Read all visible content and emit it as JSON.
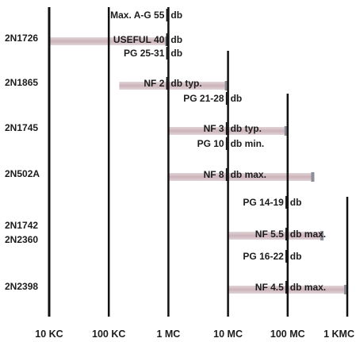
{
  "chart_data": {
    "type": "bar",
    "title": "",
    "xlabel": "",
    "ylabel": "",
    "x_scale": "log",
    "x_unit": "Hz",
    "xlim": [
      10000,
      1000000000
    ],
    "x_ticks": [
      {
        "label": "10 KC",
        "value": 10000
      },
      {
        "label": "100 KC",
        "value": 100000
      },
      {
        "label": "1 MC",
        "value": 1000000
      },
      {
        "label": "10 MC",
        "value": 10000000
      },
      {
        "label": "100 MC",
        "value": 100000000
      },
      {
        "label": "1 KMC",
        "value": 1000000000
      }
    ],
    "series": [
      {
        "name": "2N1726",
        "labels": [
          "2N1726"
        ],
        "range": [
          10000,
          1000000
        ],
        "specs": [
          {
            "param": "Max. A-G",
            "value": "55",
            "unit": "db"
          },
          {
            "param": "USEFUL",
            "value": "40",
            "unit": "db"
          }
        ]
      },
      {
        "name": "2N1865",
        "labels": [
          "2N1865"
        ],
        "range": [
          150000,
          10000000
        ],
        "specs": [
          {
            "param": "PG",
            "value": "25-31",
            "unit": "db"
          },
          {
            "param": "NF",
            "value": "2",
            "unit": "db typ."
          }
        ]
      },
      {
        "name": "2N1745",
        "labels": [
          "2N1745"
        ],
        "range": [
          1000000,
          100000000
        ],
        "specs": [
          {
            "param": "PG",
            "value": "21-28",
            "unit": "db"
          },
          {
            "param": "NF",
            "value": "3",
            "unit": "db typ."
          }
        ]
      },
      {
        "name": "2N502A",
        "labels": [
          "2N502A"
        ],
        "range": [
          1000000,
          280000000
        ],
        "specs": [
          {
            "param": "PG",
            "value": "10",
            "unit": "db min."
          },
          {
            "param": "NF",
            "value": "8",
            "unit": "db max."
          }
        ]
      },
      {
        "name": "2N1742 / 2N2360",
        "labels": [
          "2N1742",
          "2N2360"
        ],
        "range": [
          10000000,
          400000000
        ],
        "specs": [
          {
            "param": "PG",
            "value": "14-19",
            "unit": "db"
          },
          {
            "param": "NF",
            "value": "5.5",
            "unit": "db max."
          }
        ]
      },
      {
        "name": "2N2398",
        "labels": [
          "2N2398"
        ],
        "range": [
          10000000,
          1000000000
        ],
        "specs": [
          {
            "param": "PG",
            "value": "16-22",
            "unit": "db"
          },
          {
            "param": "NF",
            "value": "4.5",
            "unit": "db max."
          }
        ]
      }
    ]
  },
  "colors": {
    "bar": "#c7aab2",
    "bar_end": "#8f8f99",
    "line": "#111111",
    "text": "#1c1c1c"
  }
}
